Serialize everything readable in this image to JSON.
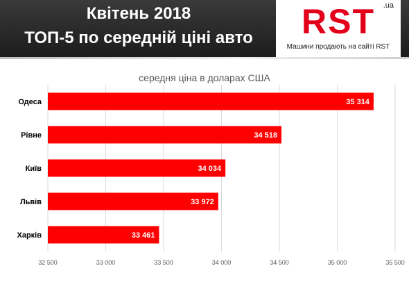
{
  "header": {
    "title_line1": "Квітень 2018",
    "title_line2": "ТОП-5 по середній ціні авто"
  },
  "logo": {
    "name": "RST",
    "domain": ".ua",
    "tagline": "Машини продають на сайті RST"
  },
  "colors": {
    "bar": "#ff0000",
    "brand": "#e2001a"
  },
  "chart_data": {
    "type": "bar",
    "orientation": "horizontal",
    "title": "середня ціна в доларах США",
    "categories": [
      "Одеса",
      "Рівне",
      "Київ",
      "Львів",
      "Харків"
    ],
    "values": [
      35314,
      34518,
      34034,
      33972,
      33461
    ],
    "value_labels": [
      "35 314",
      "34 518",
      "34 034",
      "33 972",
      "33 461"
    ],
    "xlim": [
      32500,
      35500
    ],
    "xticks": [
      32500,
      33000,
      33500,
      34000,
      34500,
      35000,
      35500
    ],
    "xtick_labels": [
      "32 500",
      "33 000",
      "33 500",
      "34 000",
      "34 500",
      "35 000",
      "35 500"
    ],
    "grid": true,
    "legend": "none"
  }
}
